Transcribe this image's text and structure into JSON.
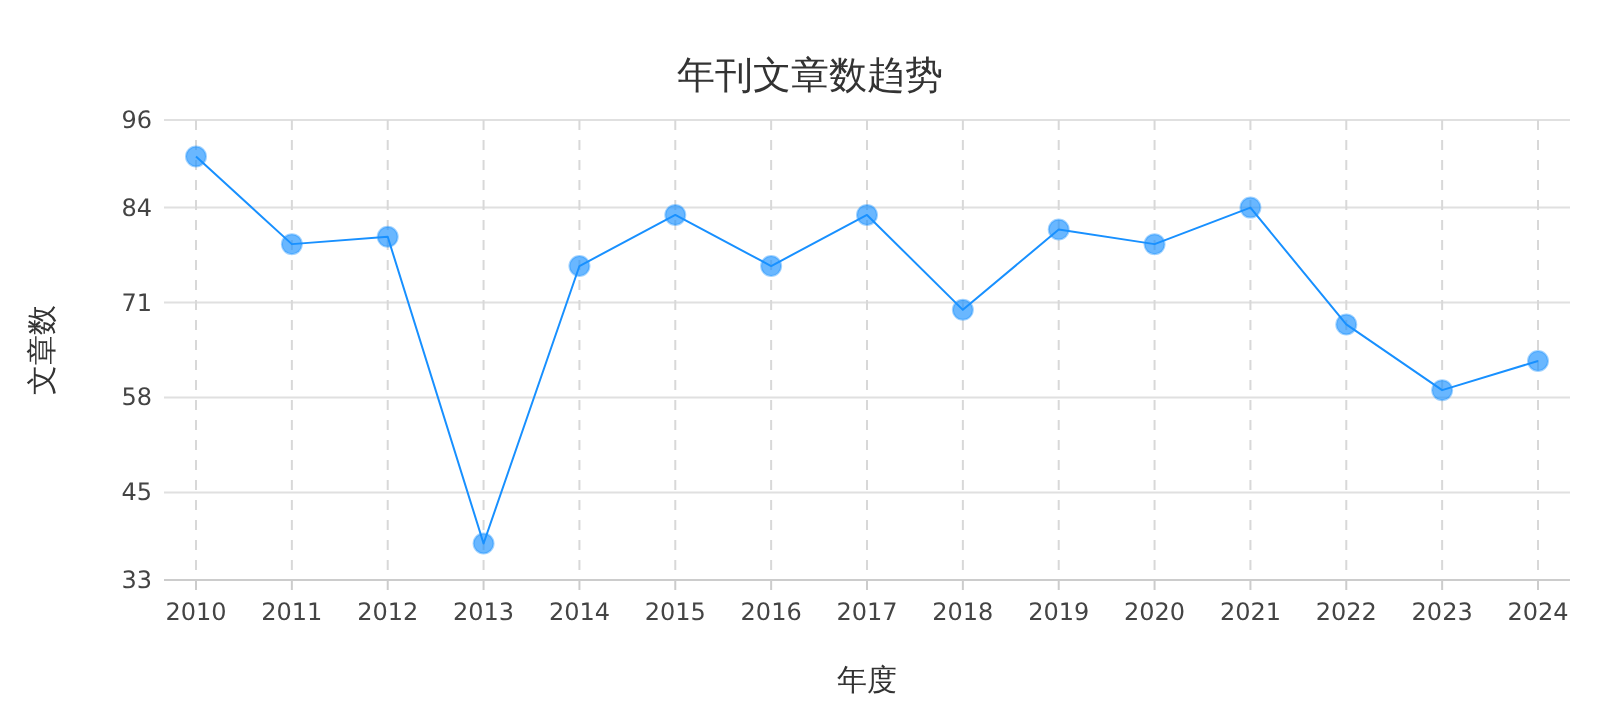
{
  "chart_data": {
    "type": "line",
    "title": "年刊文章数趋势",
    "xlabel": "年度",
    "ylabel": "文章数",
    "categories": [
      "2010",
      "2011",
      "2012",
      "2013",
      "2014",
      "2015",
      "2016",
      "2017",
      "2018",
      "2019",
      "2020",
      "2021",
      "2022",
      "2023",
      "2024"
    ],
    "series": [
      {
        "color": "#1890ff",
        "values": [
          91,
          79,
          80,
          38,
          76,
          83,
          76,
          83,
          70,
          81,
          79,
          84,
          68,
          59,
          63
        ]
      }
    ],
    "ylim": [
      33,
      96
    ],
    "yticks": [
      33,
      45,
      58,
      71,
      84,
      96
    ],
    "grid": true,
    "marker": "circle"
  }
}
